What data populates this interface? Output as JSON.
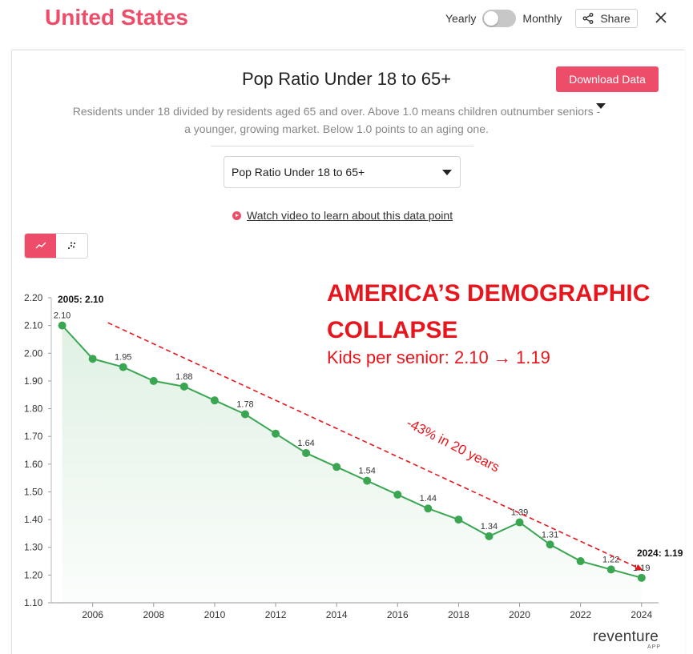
{
  "header": {
    "title": "United States",
    "toggle_left": "Yearly",
    "toggle_right": "Monthly",
    "share_label": "Share",
    "close_icon": "close-icon"
  },
  "card": {
    "metric_title": "Pop Ratio Under 18 to 65+",
    "download_label": "Download Data",
    "description": "Residents under 18 divided by residents aged 65 and over. Above 1.0 means children outnumber seniors - a younger, growing market. Below 1.0 points to an aging one.",
    "select_value": "Pop Ratio Under 18 to 65+",
    "video_link": "Watch video to learn about this data point",
    "accent_color": "#ee4d6a",
    "line_color": "#3aa652",
    "annotation_color": "#e8161c"
  },
  "annotations": {
    "headline": "AMERICA’S DEMOGRAPHIC COLLAPSE",
    "subhead": "Kids per senior: 2.10 → 1.19",
    "trend_label": "-43% in 20 years",
    "start_label": "2005: 2.10",
    "end_label": "2024: 1.19"
  },
  "brand": {
    "name": "reventure",
    "sub": "APP"
  },
  "chart_data": {
    "type": "line",
    "title": "Pop Ratio Under 18 to 65+",
    "x": [
      2005,
      2006,
      2007,
      2008,
      2009,
      2010,
      2011,
      2012,
      2013,
      2014,
      2015,
      2016,
      2017,
      2018,
      2019,
      2020,
      2021,
      2022,
      2023,
      2024
    ],
    "series": [
      {
        "values": [
          2.1,
          1.98,
          1.95,
          1.9,
          1.88,
          1.83,
          1.78,
          1.71,
          1.64,
          1.59,
          1.54,
          1.49,
          1.44,
          1.4,
          1.34,
          1.39,
          1.31,
          1.25,
          1.22,
          1.19
        ]
      }
    ],
    "data_labels": [
      {
        "x": 2005,
        "label": "2.10"
      },
      {
        "x": 2007,
        "label": "1.95"
      },
      {
        "x": 2009,
        "label": "1.88"
      },
      {
        "x": 2011,
        "label": "1.78"
      },
      {
        "x": 2013,
        "label": "1.64"
      },
      {
        "x": 2015,
        "label": "1.54"
      },
      {
        "x": 2017,
        "label": "1.44"
      },
      {
        "x": 2019,
        "label": "1.34"
      },
      {
        "x": 2020,
        "label": "1.39"
      },
      {
        "x": 2021,
        "label": "1.31"
      },
      {
        "x": 2023,
        "label": "1.22"
      },
      {
        "x": 2024,
        "label": "1.19"
      }
    ],
    "x_ticks": [
      "2006",
      "2008",
      "2010",
      "2012",
      "2014",
      "2016",
      "2018",
      "2020",
      "2022",
      "2024"
    ],
    "y_ticks": [
      "1.10",
      "1.20",
      "1.30",
      "1.40",
      "1.50",
      "1.60",
      "1.70",
      "1.80",
      "1.90",
      "2.00",
      "2.10",
      "2.20"
    ],
    "xlim": [
      2004.8,
      2024.4
    ],
    "ylim": [
      1.1,
      2.2
    ],
    "xlabel": "",
    "ylabel": "",
    "grid": false,
    "trend_line": {
      "from": [
        2006.5,
        2.11
      ],
      "to": [
        2024,
        1.22
      ]
    }
  }
}
